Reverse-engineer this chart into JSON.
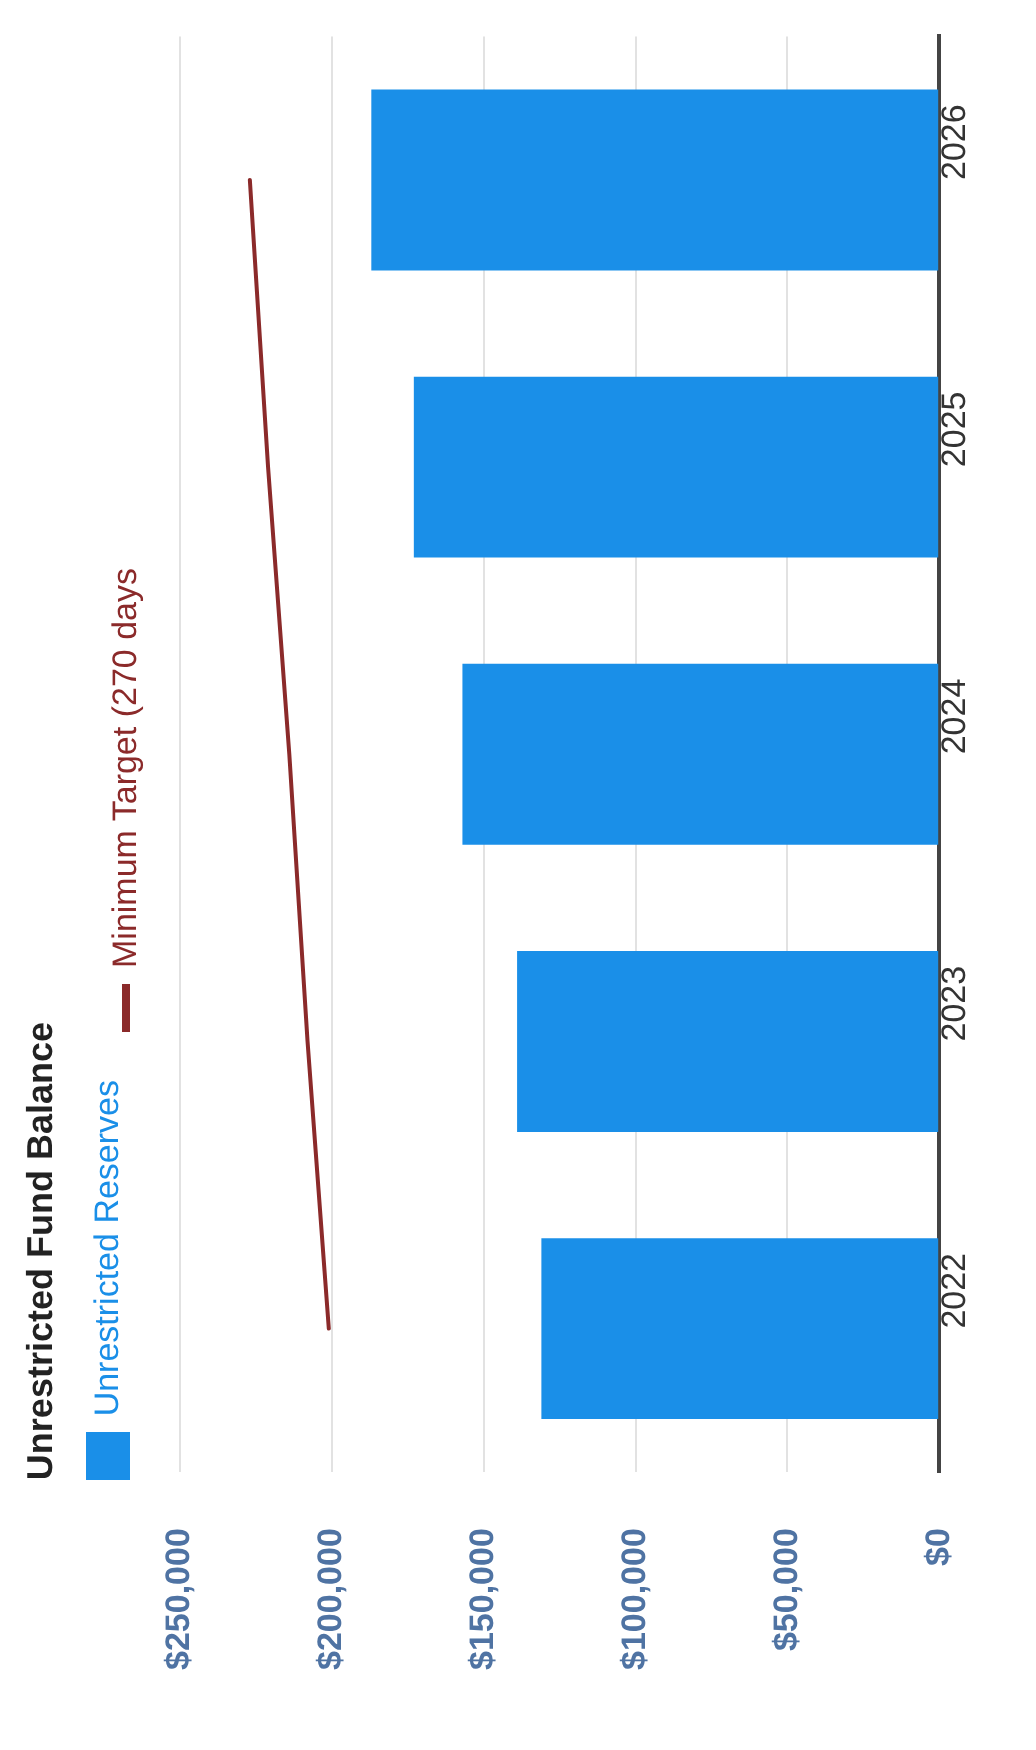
{
  "chart_data": {
    "type": "bar",
    "title": "Unrestricted Fund Balance",
    "orientation": "horizontal",
    "categories": [
      "2026",
      "2025",
      "2024",
      "2023",
      "2022"
    ],
    "series": [
      {
        "name": "Unrestricted Reserves",
        "color": "#1a8fe8",
        "values": [
          187000,
          173000,
          157000,
          139000,
          131000
        ]
      },
      {
        "name": "Minimum Target (270 days",
        "type": "line",
        "color": "#8b2a2a",
        "values": [
          227000,
          221000,
          214000,
          208000,
          201000
        ]
      }
    ],
    "xlim": [
      250000,
      0
    ],
    "xticks": [
      {
        "value": 250000,
        "label": "$250,000"
      },
      {
        "value": 200000,
        "label": "$200,000"
      },
      {
        "value": 150000,
        "label": "$150,000"
      },
      {
        "value": 100000,
        "label": "$100,000"
      },
      {
        "value": 50000,
        "label": "$50,000"
      },
      {
        "value": 0,
        "label": "$0"
      }
    ],
    "grid": "x",
    "legend": "left",
    "marker": "none",
    "line_style": "solid"
  }
}
